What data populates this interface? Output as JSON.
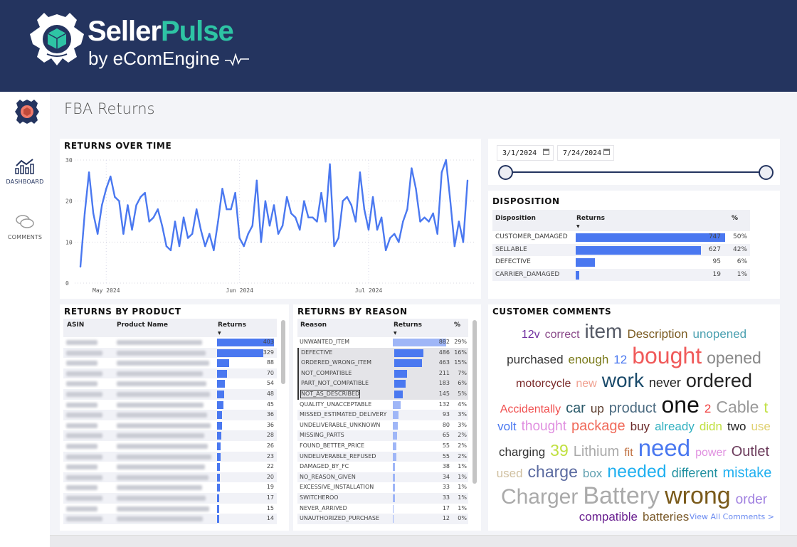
{
  "header": {
    "brand_seller": "Seller",
    "brand_pulse": "Pulse",
    "brand_sub": "by eComEngine"
  },
  "sidebar": {
    "items": [
      {
        "label": "DASHBOARD",
        "icon": "dashboard-chart-icon"
      },
      {
        "label": "COMMENTS",
        "icon": "chat-bubbles-icon"
      }
    ]
  },
  "page": {
    "title": "FBA Returns"
  },
  "returns_over_time": {
    "title": "RETURNS OVER TIME"
  },
  "chart_data": {
    "type": "line",
    "title": "RETURNS OVER TIME",
    "xlabel": "",
    "ylabel": "",
    "start_date": "2024-04-25",
    "x_ticks": [
      "May 2024",
      "Jun 2024",
      "Jul 2024"
    ],
    "y_ticks": [
      "0",
      "10",
      "20",
      "30"
    ],
    "ylim": [
      0,
      30
    ],
    "grid": true,
    "color": "#4a78f0",
    "values": [
      4,
      17,
      27,
      17,
      12,
      19,
      23,
      26,
      21,
      20,
      12,
      19,
      13,
      19,
      21,
      22,
      15,
      16,
      18,
      14,
      9,
      8,
      15,
      9,
      16,
      11,
      12,
      18,
      13,
      9,
      12,
      8,
      15,
      23,
      18,
      18,
      22,
      11,
      9,
      12,
      14,
      25,
      10,
      20,
      14,
      19,
      12,
      14,
      21,
      17,
      16,
      13,
      20,
      16,
      16,
      15,
      22,
      15,
      29,
      9,
      11,
      20,
      21,
      19,
      15,
      27,
      18,
      13,
      21,
      13,
      16,
      8,
      11,
      12,
      10,
      15,
      18,
      28,
      23,
      15,
      16,
      15,
      17,
      12,
      27,
      30,
      20,
      9,
      15,
      10,
      25
    ]
  },
  "date_range": {
    "start": "3/1/2024",
    "end": "7/24/2024"
  },
  "disposition": {
    "title": "DISPOSITION",
    "columns": [
      "Disposition",
      "Returns",
      "%"
    ],
    "rows": [
      {
        "name": "CUSTOMER_DAMAGED",
        "value": "747",
        "pct": "50%",
        "n": 747
      },
      {
        "name": "SELLABLE",
        "value": "627",
        "pct": "42%",
        "n": 627
      },
      {
        "name": "DEFECTIVE",
        "value": "95",
        "pct": "6%",
        "n": 95
      },
      {
        "name": "CARRIER_DAMAGED",
        "value": "19",
        "pct": "1%",
        "n": 19
      }
    ]
  },
  "by_product": {
    "title": "RETURNS BY PRODUCT",
    "columns": [
      "ASIN",
      "Product Name",
      "Returns"
    ],
    "values": [
      "403",
      "329",
      "88",
      "70",
      "54",
      "48",
      "45",
      "36",
      "36",
      "28",
      "26",
      "23",
      "22",
      "20",
      "19",
      "17",
      "15",
      "14"
    ]
  },
  "by_reason": {
    "title": "RETURNS BY REASON",
    "columns": [
      "Reason",
      "Returns",
      "%"
    ],
    "rows": [
      {
        "name": "UNWANTED_ITEM",
        "value": "882",
        "pct": "29%",
        "n": 882
      },
      {
        "name": "DEFECTIVE",
        "value": "486",
        "pct": "16%",
        "n": 486,
        "sel": true
      },
      {
        "name": "ORDERED_WRONG_ITEM",
        "value": "463",
        "pct": "15%",
        "n": 463,
        "sel": true
      },
      {
        "name": "NOT_COMPATIBLE",
        "value": "211",
        "pct": "7%",
        "n": 211,
        "sel": true
      },
      {
        "name": "PART_NOT_COMPATIBLE",
        "value": "183",
        "pct": "6%",
        "n": 183,
        "sel": true
      },
      {
        "name": "NOT_AS_DESCRIBED",
        "value": "145",
        "pct": "5%",
        "n": 145,
        "sel": true
      },
      {
        "name": "QUALITY_UNACCEPTABLE",
        "value": "132",
        "pct": "4%",
        "n": 132
      },
      {
        "name": "MISSED_ESTIMATED_DELIVERY",
        "value": "93",
        "pct": "3%",
        "n": 93
      },
      {
        "name": "UNDELIVERABLE_UNKNOWN",
        "value": "80",
        "pct": "3%",
        "n": 80
      },
      {
        "name": "MISSING_PARTS",
        "value": "65",
        "pct": "2%",
        "n": 65
      },
      {
        "name": "FOUND_BETTER_PRICE",
        "value": "55",
        "pct": "2%",
        "n": 55
      },
      {
        "name": "UNDELIVERABLE_REFUSED",
        "value": "55",
        "pct": "2%",
        "n": 55
      },
      {
        "name": "DAMAGED_BY_FC",
        "value": "38",
        "pct": "1%",
        "n": 38
      },
      {
        "name": "NO_REASON_GIVEN",
        "value": "34",
        "pct": "1%",
        "n": 34
      },
      {
        "name": "EXCESSIVE_INSTALLATION",
        "value": "33",
        "pct": "1%",
        "n": 33
      },
      {
        "name": "SWITCHEROO",
        "value": "33",
        "pct": "1%",
        "n": 33
      },
      {
        "name": "NEVER_ARRIVED",
        "value": "17",
        "pct": "1%",
        "n": 17
      },
      {
        "name": "UNAUTHORIZED_PURCHASE",
        "value": "12",
        "pct": "0%",
        "n": 12
      }
    ]
  },
  "comments": {
    "title": "CUSTOMER COMMENTS",
    "view_all": "View All Comments >",
    "words": [
      {
        "t": "12v",
        "c": "#7030a0"
      },
      {
        "t": "correct",
        "c": "#8a4a8a"
      },
      {
        "t": "item",
        "c": "#555a66"
      },
      {
        "t": "Description",
        "c": "#7a5a20"
      },
      {
        "t": "unopened",
        "c": "#4aa0b0"
      },
      {
        "t": "purchased",
        "c": "#333333"
      },
      {
        "t": "enough",
        "c": "#7a7a1a"
      },
      {
        "t": "12",
        "c": "#4a78f0"
      },
      {
        "t": "bought",
        "c": "#f05a5a"
      },
      {
        "t": "opened",
        "c": "#888888"
      },
      {
        "t": "motorcycle",
        "c": "#7a2a2a"
      },
      {
        "t": "new",
        "c": "#f0a090"
      },
      {
        "t": "work",
        "c": "#1a4a6a"
      },
      {
        "t": "never",
        "c": "#222222"
      },
      {
        "t": "ordered",
        "c": "#222222"
      },
      {
        "t": "Accidentally",
        "c": "#f05050"
      },
      {
        "t": "car",
        "c": "#2a5a6a"
      },
      {
        "t": "up",
        "c": "#5a3a2a"
      },
      {
        "t": "product",
        "c": "#4a6a80"
      },
      {
        "t": "one",
        "c": "#111111"
      },
      {
        "t": "2",
        "c": "#f04040"
      },
      {
        "t": "Cable",
        "c": "#999999"
      },
      {
        "t": "t",
        "c": "#c0e040"
      },
      {
        "t": "volt",
        "c": "#4a78f0"
      },
      {
        "t": "thought",
        "c": "#e090e0"
      },
      {
        "t": "package",
        "c": "#f06a5a"
      },
      {
        "t": "buy",
        "c": "#6a2a2a"
      },
      {
        "t": "already",
        "c": "#30b0c0"
      },
      {
        "t": "didn",
        "c": "#c0e040"
      },
      {
        "t": "two",
        "c": "#222222"
      },
      {
        "t": "use",
        "c": "#e0d070"
      },
      {
        "t": "charging",
        "c": "#333333"
      },
      {
        "t": "39",
        "c": "#c0e040"
      },
      {
        "t": "Lithium",
        "c": "#aaaaaa"
      },
      {
        "t": "fit",
        "c": "#c07040"
      },
      {
        "t": "need",
        "c": "#4a78f0"
      },
      {
        "t": "power",
        "c": "#e090e0"
      },
      {
        "t": "Outlet",
        "c": "#6a3a5a"
      },
      {
        "t": "used",
        "c": "#d0c0a0"
      },
      {
        "t": "charge",
        "c": "#5a6aa0"
      },
      {
        "t": "box",
        "c": "#60a0b0"
      },
      {
        "t": "needed",
        "c": "#20b0f0"
      },
      {
        "t": "different",
        "c": "#2090a0"
      },
      {
        "t": "mistake",
        "c": "#20b0f0"
      },
      {
        "t": "Charger",
        "c": "#aaaaaa"
      },
      {
        "t": "Battery",
        "c": "#aaaaaa"
      },
      {
        "t": "wrong",
        "c": "#7a5a1a"
      },
      {
        "t": "order",
        "c": "#a080e0"
      },
      {
        "t": "compatible",
        "c": "#6a2090"
      },
      {
        "t": "batteries",
        "c": "#7a5a2a"
      }
    ]
  },
  "colors": {
    "header": "#24345f",
    "accent": "#2ec4a4",
    "bar": "#4a78f0"
  }
}
